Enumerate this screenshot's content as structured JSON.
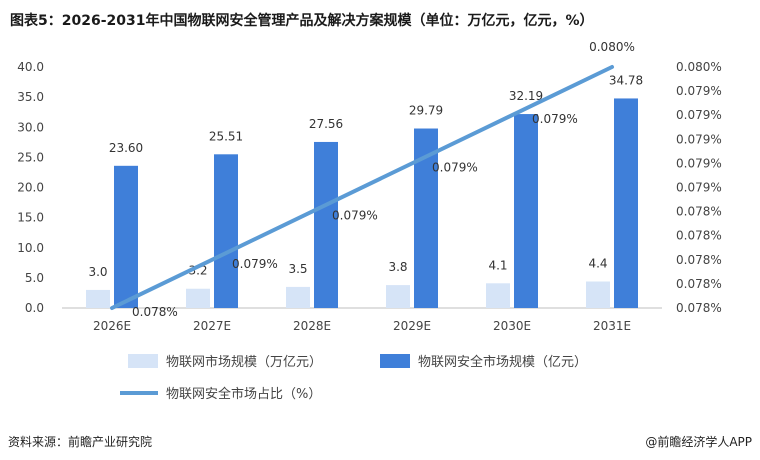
{
  "title": "图表5：2026-2031年中国物联网安全管理产品及解决方案规模（单位：万亿元，亿元，%）",
  "source": "资料来源：前瞻产业研究院",
  "brand": "@前瞻经济学人APP",
  "chart_data": {
    "type": "bar",
    "categories": [
      "2026E",
      "2027E",
      "2028E",
      "2029E",
      "2030E",
      "2031E"
    ],
    "series": [
      {
        "name": "物联网市场规模（万亿元）",
        "kind": "bar",
        "axis": "left",
        "color": "#d6e4f7",
        "values": [
          3.0,
          3.2,
          3.5,
          3.8,
          4.1,
          4.4
        ],
        "labels": [
          "3.0",
          "3.2",
          "3.5",
          "3.8",
          "4.1",
          "4.4"
        ]
      },
      {
        "name": "物联网安全市场规模（亿元）",
        "kind": "bar",
        "axis": "left",
        "color": "#3f7fd9",
        "values": [
          23.6,
          25.51,
          27.56,
          29.79,
          32.19,
          34.78
        ],
        "labels": [
          "23.60",
          "25.51",
          "27.56",
          "29.79",
          "32.19",
          "34.78"
        ]
      },
      {
        "name": "物联网安全市场占比（%）",
        "kind": "line",
        "axis": "right",
        "color": "#5b9bd5",
        "values": [
          0.0078,
          0.0079,
          0.0079,
          0.0079,
          0.0079,
          0.008
        ],
        "labels": [
          "0.078%",
          "0.079%",
          "0.079%",
          "0.079%",
          "0.079%",
          "0.080%"
        ]
      }
    ],
    "y_left": {
      "ylim": [
        0,
        40
      ],
      "ticks": [
        "0.0",
        "5.0",
        "10.0",
        "15.0",
        "20.0",
        "25.0",
        "30.0",
        "35.0",
        "40.0"
      ]
    },
    "y_right": {
      "ylim": [
        0.0078,
        0.008
      ],
      "ticks": [
        "0.078%",
        "0.078%",
        "0.078%",
        "0.078%",
        "0.078%",
        "0.079%",
        "0.079%",
        "0.079%",
        "0.079%",
        "0.079%",
        "0.080%"
      ]
    },
    "grid": false,
    "legend": "bottom"
  }
}
